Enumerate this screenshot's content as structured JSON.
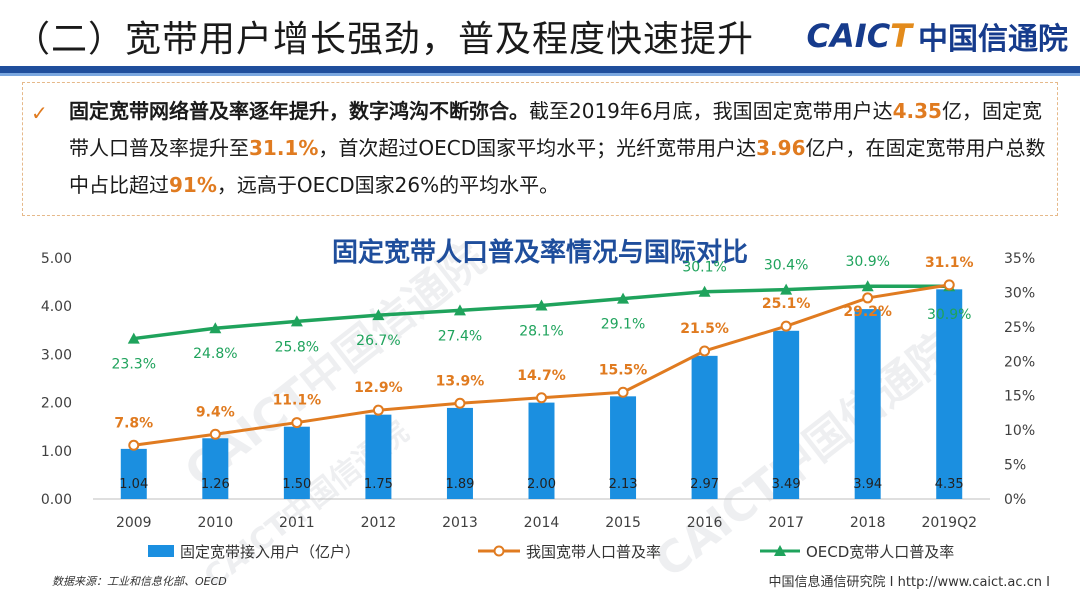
{
  "header": {
    "title": "（二）宽带用户增长强劲，普及程度快速提升",
    "logo_en_1": "CAIC",
    "logo_en_2": "T",
    "logo_cn": "中国信通院"
  },
  "summary": {
    "check_icon": "checkmark-icon",
    "lead": "固定宽带网络普及率逐年提升，数字鸿沟不断弥合。",
    "t1": "截至2019年6月底，我国固定宽带用户达",
    "v1": "4.35",
    "t2": "亿，固定宽带人口普及率提升至",
    "v2": "31.1%",
    "t3": "，首次超过OECD国家平均水平；光纤宽带用户达",
    "v3": "3.96",
    "t4": "亿户，在固定宽带用户总数中占比超过",
    "v4": "91%",
    "t5": "，远高于OECD国家26%的平均水平。"
  },
  "chart_data": {
    "type": "bar",
    "title": "固定宽带人口普及率情况与国际对比",
    "categories": [
      "2009",
      "2010",
      "2011",
      "2012",
      "2013",
      "2014",
      "2015",
      "2016",
      "2017",
      "2018",
      "2019Q2"
    ],
    "y_left_ticks": [
      "0.00",
      "1.00",
      "2.00",
      "3.00",
      "4.00",
      "5.00"
    ],
    "y_left_range": [
      0,
      5
    ],
    "y_right_ticks": [
      "0%",
      "5%",
      "10%",
      "15%",
      "20%",
      "25%",
      "30%",
      "35%"
    ],
    "y_right_range": [
      0,
      35
    ],
    "series": [
      {
        "name": "固定宽带接入用户（亿户）",
        "kind": "bar",
        "axis": "left",
        "color": "#1b8fe0",
        "values": [
          1.04,
          1.26,
          1.5,
          1.75,
          1.89,
          2.0,
          2.13,
          2.97,
          3.49,
          3.94,
          4.35
        ],
        "labels": [
          "1.04",
          "1.26",
          "1.50",
          "1.75",
          "1.89",
          "2.00",
          "2.13",
          "2.97",
          "3.49",
          "3.94",
          "4.35"
        ]
      },
      {
        "name": "我国宽带人口普及率",
        "kind": "line",
        "axis": "right",
        "color": "#e07b20",
        "values": [
          7.8,
          9.4,
          11.1,
          12.9,
          13.9,
          14.7,
          15.5,
          21.5,
          25.1,
          29.2,
          31.1
        ],
        "labels": [
          "7.8%",
          "9.4%",
          "11.1%",
          "12.9%",
          "13.9%",
          "14.7%",
          "15.5%",
          "21.5%",
          "25.1%",
          "29.2%",
          "31.1%"
        ]
      },
      {
        "name": "OECD宽带人口普及率",
        "kind": "line",
        "axis": "right",
        "color": "#1fa35c",
        "values": [
          23.3,
          24.8,
          25.8,
          26.7,
          27.4,
          28.1,
          29.1,
          30.1,
          30.4,
          30.9,
          30.9
        ],
        "labels": [
          "23.3%",
          "24.8%",
          "25.8%",
          "26.7%",
          "27.4%",
          "28.1%",
          "29.1%",
          "30.1%",
          "30.4%",
          "30.9%",
          "30.9%"
        ]
      }
    ],
    "grid": false,
    "legend_position": "bottom"
  },
  "footer": {
    "source": "数据来源：工业和信息化部、OECD",
    "org": "中国信息通信研究院  I  http://www.caict.ac.cn  I"
  },
  "watermarks": [
    "CAICT中国信通院",
    "CAICT中国信通院",
    "CAICT中国信通院"
  ]
}
